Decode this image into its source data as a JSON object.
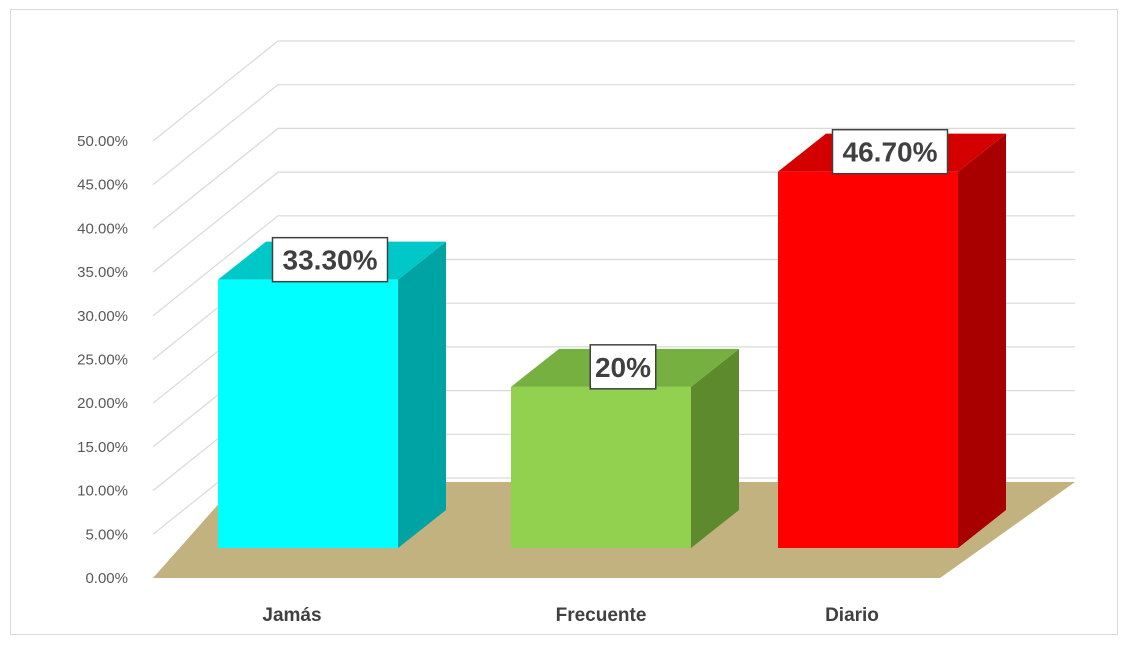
{
  "chart_data": {
    "type": "bar",
    "style": "3d-column",
    "categories": [
      "Jamás",
      "Frecuente",
      "Diario"
    ],
    "values": [
      33.3,
      20,
      46.7
    ],
    "data_labels": [
      "33.30%",
      "20%",
      "46.70%"
    ],
    "colors": {
      "front": [
        "#00ffff",
        "#92d050",
        "#ff0000"
      ],
      "side": [
        "#00a3a3",
        "#5e8a2e",
        "#a80000"
      ],
      "top": [
        "#00c8c8",
        "#76b040",
        "#d40000"
      ],
      "floor": "#c2b280",
      "gridline": "#d9d9d9"
    },
    "y_ticks": [
      "0.00%",
      "5.00%",
      "10.00%",
      "15.00%",
      "20.00%",
      "25.00%",
      "30.00%",
      "35.00%",
      "40.00%",
      "45.00%",
      "50.00%"
    ],
    "ylim": [
      0,
      50
    ],
    "grid": true,
    "title": "",
    "xlabel": "",
    "ylabel": "",
    "legend": "none"
  }
}
